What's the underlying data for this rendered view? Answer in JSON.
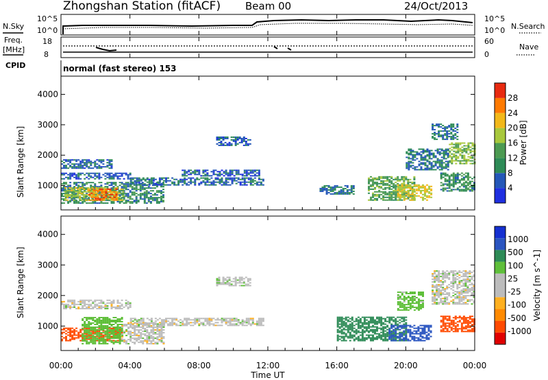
{
  "header": {
    "title": "Zhongshan Station (fitACF)",
    "beam": "Beam 00",
    "date": "24/Oct/2013"
  },
  "noise_panel": {
    "left_label": "N.Sky",
    "left_tick_top": "10^5",
    "left_tick_bottom": "10^0",
    "right_label": "N.Search",
    "right_tick_top": "10^5",
    "right_tick_bottom": "10^0"
  },
  "freq_panel": {
    "left_label_line1": "Freq.",
    "left_label_line2": "[MHz]",
    "left_tick_top": "18",
    "left_tick_bottom": "8",
    "right_label": "Nave",
    "right_tick_top": "60",
    "right_tick_bottom": "0"
  },
  "cpid": {
    "label": "CPID",
    "value": "normal (fast stereo) 153"
  },
  "colors": {
    "power_scale": [
      "#1f2fe0",
      "#2457b8",
      "#2e8b57",
      "#4c9a52",
      "#a8c83c",
      "#f2b81a",
      "#ff7a00",
      "#e82a10"
    ],
    "velocity_scale": [
      "#e00000",
      "#ff4a00",
      "#ff8a00",
      "#ffb020",
      "#bcbcbc",
      "#bcbcbc",
      "#5fbf3a",
      "#2e8b57",
      "#2a55c0",
      "#1530d0"
    ]
  },
  "chart_data": [
    {
      "type": "heatmap",
      "name": "power",
      "ylabel": "Slant Range [km]",
      "yticks": [
        "1000",
        "2000",
        "3000",
        "4000"
      ],
      "ylim": [
        200,
        4600
      ],
      "xlim": [
        0,
        24
      ],
      "colorbar_label": "Power [dB]",
      "colorbar_ticks": [
        "4",
        "8",
        "12",
        "16",
        "20",
        "24",
        "28"
      ],
      "colorbar_range": [
        0,
        32
      ],
      "echo_regions": [
        {
          "t0": 0.0,
          "t1": 6.0,
          "r0": 400,
          "r1": 1100,
          "power": 10
        },
        {
          "t0": 0.2,
          "t1": 3.6,
          "r0": 500,
          "r1": 950,
          "power": 18
        },
        {
          "t0": 1.6,
          "t1": 3.2,
          "r0": 500,
          "r1": 900,
          "power": 26
        },
        {
          "t0": 0.0,
          "t1": 3.0,
          "r0": 1550,
          "r1": 1850,
          "power": 7
        },
        {
          "t0": 0.0,
          "t1": 4.0,
          "r0": 1200,
          "r1": 1400,
          "power": 6
        },
        {
          "t0": 4.0,
          "t1": 11.7,
          "r0": 1000,
          "r1": 1250,
          "power": 7
        },
        {
          "t0": 7.0,
          "t1": 11.5,
          "r0": 1300,
          "r1": 1500,
          "power": 6
        },
        {
          "t0": 9.0,
          "t1": 11.0,
          "r0": 2300,
          "r1": 2600,
          "power": 6
        },
        {
          "t0": 15.0,
          "t1": 17.0,
          "r0": 700,
          "r1": 1000,
          "power": 8
        },
        {
          "t0": 17.8,
          "t1": 20.5,
          "r0": 500,
          "r1": 1300,
          "power": 14
        },
        {
          "t0": 19.5,
          "t1": 21.5,
          "r0": 500,
          "r1": 1000,
          "power": 20
        },
        {
          "t0": 20.0,
          "t1": 22.5,
          "r0": 1500,
          "r1": 2200,
          "power": 8
        },
        {
          "t0": 22.0,
          "t1": 24.0,
          "r0": 800,
          "r1": 1400,
          "power": 11
        },
        {
          "t0": 22.5,
          "t1": 24.0,
          "r0": 1700,
          "r1": 2400,
          "power": 16
        },
        {
          "t0": 21.5,
          "t1": 23.0,
          "r0": 2500,
          "r1": 3000,
          "power": 8
        }
      ]
    },
    {
      "type": "heatmap",
      "name": "velocity",
      "ylabel": "Slant Range [km]",
      "yticks": [
        "1000",
        "2000",
        "3000",
        "4000"
      ],
      "ylim": [
        200,
        4600
      ],
      "xlim": [
        0,
        24
      ],
      "colorbar_label": "Velocity [m s^-1]",
      "colorbar_ticks": [
        "1000",
        "500",
        "100",
        "25",
        "-25",
        "-100",
        "-500",
        "-1000"
      ],
      "echo_regions": [
        {
          "t0": 0.0,
          "t1": 3.6,
          "r0": 500,
          "r1": 950,
          "velocity": -150
        },
        {
          "t0": 1.2,
          "t1": 3.5,
          "r0": 400,
          "r1": 1300,
          "velocity": 60
        },
        {
          "t0": 3.5,
          "t1": 6.0,
          "r0": 400,
          "r1": 1100,
          "velocity": 0
        },
        {
          "t0": 0.0,
          "t1": 4.0,
          "r0": 1550,
          "r1": 1850,
          "velocity": 0
        },
        {
          "t0": 4.0,
          "t1": 11.7,
          "r0": 1000,
          "r1": 1250,
          "velocity": 0
        },
        {
          "t0": 9.0,
          "t1": 11.0,
          "r0": 2300,
          "r1": 2600,
          "velocity": 5
        },
        {
          "t0": 16.0,
          "t1": 20.0,
          "r0": 500,
          "r1": 1300,
          "velocity": 200
        },
        {
          "t0": 19.0,
          "t1": 21.5,
          "r0": 500,
          "r1": 1000,
          "velocity": 600
        },
        {
          "t0": 22.0,
          "t1": 24.0,
          "r0": 800,
          "r1": 1300,
          "velocity": -200
        },
        {
          "t0": 21.5,
          "t1": 24.0,
          "r0": 1700,
          "r1": 2800,
          "velocity": 0
        },
        {
          "t0": 19.5,
          "t1": 21.0,
          "r0": 1500,
          "r1": 2100,
          "velocity": 50
        }
      ]
    }
  ],
  "x_axis": {
    "ticks": [
      "00:00",
      "04:00",
      "08:00",
      "12:00",
      "16:00",
      "20:00",
      "00:00"
    ],
    "label": "Time UT"
  }
}
